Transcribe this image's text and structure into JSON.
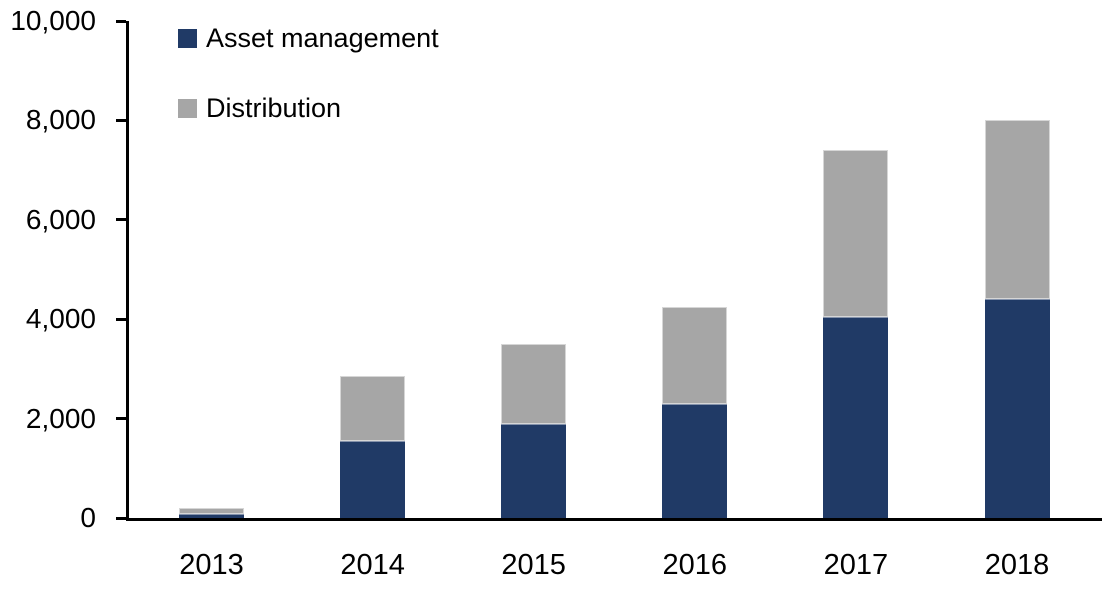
{
  "chart_data": {
    "type": "bar",
    "stacked": true,
    "title": "",
    "xlabel": "",
    "ylabel": "",
    "categories": [
      "2013",
      "2014",
      "2015",
      "2016",
      "2017",
      "2018"
    ],
    "series": [
      {
        "name": "Asset management",
        "color": "#203A66",
        "values": [
          90,
          1550,
          1900,
          2300,
          4050,
          4400
        ]
      },
      {
        "name": "Distribution",
        "color": "#A6A6A6",
        "values": [
          110,
          1300,
          1600,
          1950,
          3350,
          3600
        ]
      }
    ],
    "ylim": [
      0,
      10000
    ],
    "y_ticks": [
      {
        "value": 0,
        "label": "0"
      },
      {
        "value": 2000,
        "label": "2,000"
      },
      {
        "value": 4000,
        "label": "4,000"
      },
      {
        "value": 6000,
        "label": "6,000"
      },
      {
        "value": 8000,
        "label": "8,000"
      },
      {
        "value": 10000,
        "label": "10,000"
      }
    ],
    "legend_position": "top-left",
    "grid": false,
    "axis_color": "#000000",
    "text_color": "#000000",
    "background_color": "#FFFFFF"
  }
}
